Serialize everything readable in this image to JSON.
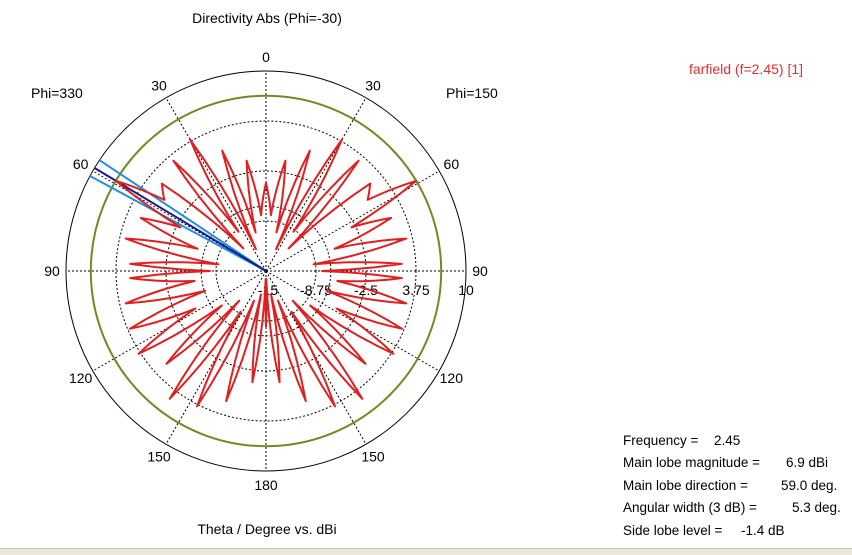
{
  "chart_data": {
    "type": "polar-line",
    "title": "Directivity Abs (Phi=-30)",
    "xlabel": "Theta / Degree vs. dBi",
    "phi_left_label": "Phi=330",
    "phi_right_label": "Phi=150",
    "angle_tick_labels": [
      "0",
      "30",
      "60",
      "90",
      "120",
      "150",
      "180",
      "150",
      "120",
      "90",
      "60",
      "30"
    ],
    "radial_tick_labels": [
      "-15",
      "-8.75",
      "-2.5",
      "3.75",
      "10"
    ],
    "radial_range": [
      -15,
      10
    ],
    "grid": true,
    "legend": {
      "label": "farfield (f=2.45) [1]",
      "color": "#e02020",
      "position": "top-right"
    },
    "series": [
      {
        "name": "farfield (f=2.45) [1]",
        "color": "#e02020",
        "note_units": "theta in degrees, directivity in dBi",
        "theta": [
          0,
          5,
          10,
          15,
          20,
          25,
          30,
          35,
          40,
          45,
          50,
          55,
          59,
          63,
          67,
          72,
          77,
          82,
          87,
          90,
          93,
          98,
          103,
          108,
          113,
          118,
          123,
          128,
          133,
          138,
          143,
          148,
          153,
          158,
          163,
          168,
          173,
          178,
          180
        ],
        "dbi": [
          -4,
          -8,
          -1,
          -10,
          1,
          -12,
          4,
          -9,
          3,
          -11,
          2,
          0.5,
          6.9,
          -3,
          2,
          -6,
          3,
          -9,
          2,
          -8,
          2,
          -6,
          3,
          -7,
          3.5,
          -5,
          4,
          -8,
          2,
          -10,
          5,
          -9,
          4,
          -11,
          2,
          -12,
          -1,
          -14,
          -8
        ]
      }
    ],
    "reference_circles": [
      {
        "level_dbi": 6.9,
        "color": "#6b8e23",
        "meaning": "main lobe magnitude"
      },
      {
        "level_dbi": -6.9,
        "color": "#000000",
        "style": "dashed",
        "meaning": "3 dB reference"
      }
    ],
    "main_lobe": {
      "direction_deg": 59.0,
      "width_3db_deg": 5.3,
      "color_center": "#1a1a8c",
      "color_edges": "#1f8fe0"
    },
    "info": {
      "frequency_label": "Frequency =",
      "frequency_value": "2.45",
      "magnitude_label": "Main lobe magnitude =",
      "magnitude_value": "6.9 dBi",
      "direction_label": "Main lobe direction =",
      "direction_value": "59.0 deg.",
      "width_label": "Angular width (3 dB) =",
      "width_value": "5.3 deg.",
      "sidelobe_label": "Side lobe level =",
      "sidelobe_value": "-1.4 dB"
    }
  }
}
